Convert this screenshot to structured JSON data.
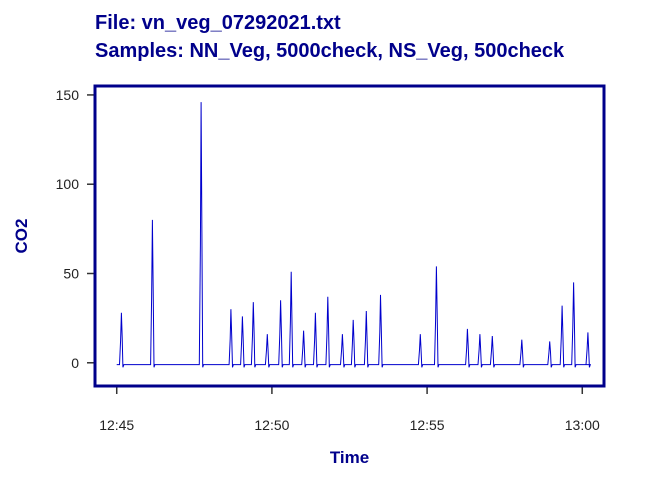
{
  "header": {
    "file_line": "File:  vn_veg_07292021.txt",
    "samples_line": "Samples: NN_Veg, 5000check, NS_Veg, 500check"
  },
  "chart_data": {
    "type": "line",
    "xlabel": "Time",
    "ylabel": "CO2",
    "x_unit": "minutes after 12:45",
    "xlim": [
      -0.7,
      15.7
    ],
    "ylim": [
      -13,
      155
    ],
    "x_ticks": [
      0,
      5,
      10,
      15
    ],
    "x_tick_labels": [
      "12:45",
      "12:50",
      "12:55",
      "13:00"
    ],
    "y_ticks": [
      0,
      50,
      100,
      150
    ],
    "y_tick_labels": [
      "0",
      "50",
      "100",
      "150"
    ],
    "grid": false,
    "line_color": "#0000CD",
    "frame_color": "#00008B",
    "series": [
      {
        "baseline": -1,
        "peaks": [
          {
            "t": 0.15,
            "v": 28
          },
          {
            "t": 1.15,
            "v": 80
          },
          {
            "t": 2.72,
            "v": 146
          },
          {
            "t": 3.68,
            "v": 30
          },
          {
            "t": 4.05,
            "v": 26
          },
          {
            "t": 4.4,
            "v": 34
          },
          {
            "t": 4.85,
            "v": 16
          },
          {
            "t": 5.28,
            "v": 35
          },
          {
            "t": 5.62,
            "v": 51
          },
          {
            "t": 6.02,
            "v": 18
          },
          {
            "t": 6.4,
            "v": 28
          },
          {
            "t": 6.8,
            "v": 37
          },
          {
            "t": 7.27,
            "v": 16
          },
          {
            "t": 7.62,
            "v": 24
          },
          {
            "t": 8.04,
            "v": 29
          },
          {
            "t": 8.5,
            "v": 38
          },
          {
            "t": 9.78,
            "v": 16
          },
          {
            "t": 10.3,
            "v": 54
          },
          {
            "t": 11.3,
            "v": 19
          },
          {
            "t": 11.7,
            "v": 16
          },
          {
            "t": 12.1,
            "v": 15
          },
          {
            "t": 13.05,
            "v": 13
          },
          {
            "t": 13.95,
            "v": 12
          },
          {
            "t": 14.35,
            "v": 32
          },
          {
            "t": 14.72,
            "v": 45
          },
          {
            "t": 15.18,
            "v": 17
          }
        ]
      }
    ]
  }
}
